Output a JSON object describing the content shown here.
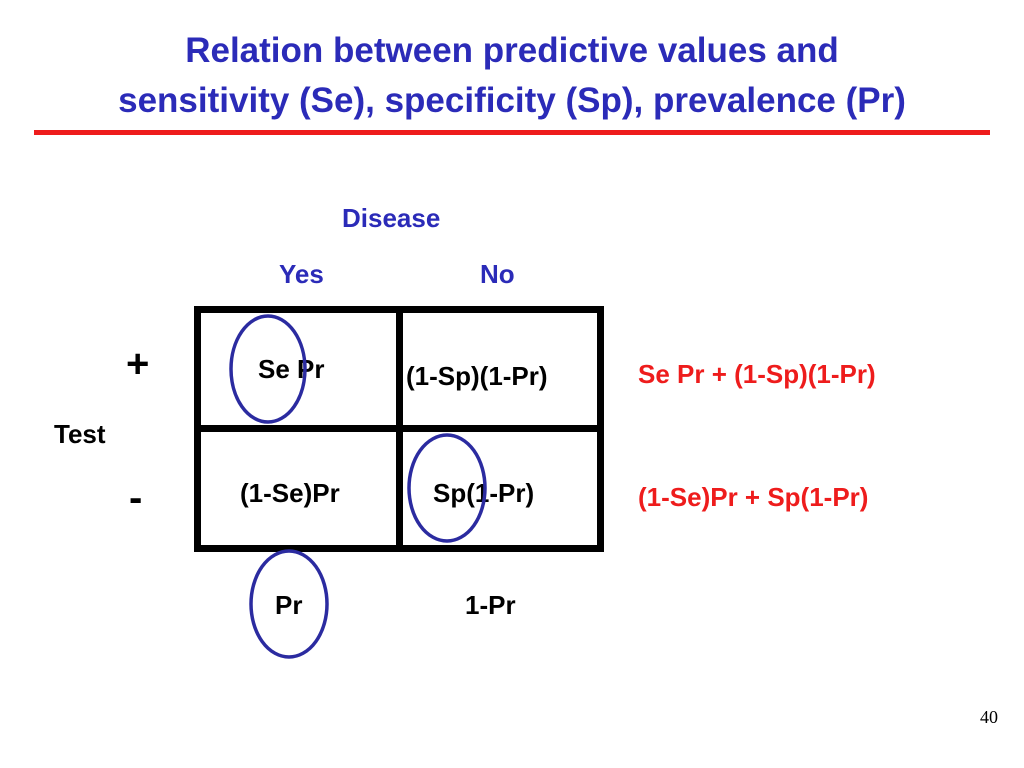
{
  "title": {
    "line1": "Relation between predictive values and",
    "line2": "sensitivity (Se), specificity (Sp), prevalence (Pr)"
  },
  "table": {
    "column_group_label": "Disease",
    "columns": [
      "Yes",
      "No"
    ],
    "row_group_label": "Test",
    "rows": [
      "+",
      "-"
    ],
    "cells": [
      [
        "Se Pr",
        "(1-Sp)(1-Pr)"
      ],
      [
        "(1-Se)Pr",
        "Sp(1-Pr)"
      ]
    ],
    "row_totals": [
      "Se Pr + (1-Sp)(1-Pr)",
      "(1-Se)Pr + Sp(1-Pr)"
    ],
    "column_totals": [
      "Pr",
      "1-Pr"
    ]
  },
  "page_number": "40",
  "colors": {
    "title": "#2b2bb8",
    "rule": "#ee1c1c",
    "row_totals": "#ee1c1c",
    "circles": "#2b2ba0",
    "text": "#000000"
  }
}
